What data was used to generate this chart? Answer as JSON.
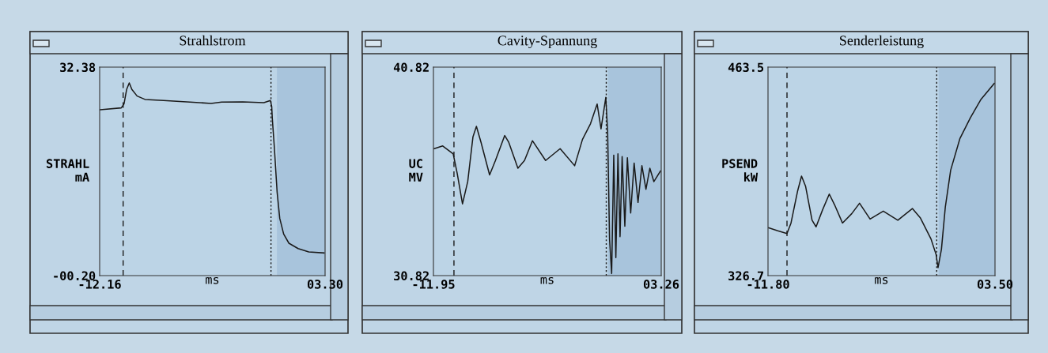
{
  "chart_data": [
    {
      "type": "line",
      "title": "Strahlstrom",
      "ylabel": "STRAHL\nmA",
      "xlabel": "ms",
      "xlim": [
        -12.16,
        3.3
      ],
      "ylim": [
        -0.2,
        32.38
      ],
      "xticks": [
        {
          "value": -12.16,
          "label": "-12.16"
        },
        {
          "value": 3.3,
          "label": "03.30"
        }
      ],
      "yticks": [
        {
          "value": -0.2,
          "label": "-00.20"
        },
        {
          "value": 32.38,
          "label": "32.38"
        }
      ],
      "grid": false,
      "legend": false,
      "series": [
        {
          "color": "#1a1a1a",
          "x": [
            -12.12,
            -10.68,
            -10.49,
            -10.31,
            -10.13,
            -9.95,
            -9.59,
            -9.05,
            -7.78,
            -5.97,
            -4.52,
            -3.8,
            -2.35,
            -0.9,
            -0.45,
            -0.36,
            -0.32,
            -0.18,
            0.01,
            0.19,
            0.46,
            0.82,
            1.45,
            2.18,
            3.23
          ],
          "values": [
            25.72,
            26.01,
            26.63,
            28.89,
            29.92,
            28.89,
            27.86,
            27.33,
            27.16,
            26.92,
            26.71,
            26.92,
            26.96,
            26.83,
            27.16,
            26.22,
            24.37,
            19.85,
            12.87,
            8.76,
            6.29,
            4.86,
            4.03,
            3.5,
            3.34
          ]
        }
      ],
      "ref_lines": [
        {
          "axis": "x",
          "value": -10.55,
          "color": "#1a1a1a",
          "line_style": "dashed"
        },
        {
          "axis": "x",
          "value": -0.41,
          "color": "#1a1a1a",
          "line_style": "dotted"
        }
      ],
      "bands": [
        {
          "axis": "x",
          "from": 0.0,
          "to": 3.3,
          "color": "#a8c4dc"
        }
      ]
    },
    {
      "type": "line",
      "title": "Cavity-Spannung",
      "ylabel": "UC\nMV",
      "xlabel": "ms",
      "xlim": [
        -11.95,
        3.26
      ],
      "ylim": [
        30.82,
        40.82
      ],
      "xticks": [
        {
          "value": -11.95,
          "label": "-11.95"
        },
        {
          "value": 3.26,
          "label": "03.26"
        }
      ],
      "yticks": [
        {
          "value": 30.82,
          "label": "30.82"
        },
        {
          "value": 40.82,
          "label": "40.82"
        }
      ],
      "grid": false,
      "legend": false,
      "series": [
        {
          "color": "#1a1a1a",
          "x": [
            -11.9,
            -11.33,
            -10.63,
            -10.36,
            -10.01,
            -9.66,
            -9.31,
            -9.08,
            -8.78,
            -8.2,
            -7.81,
            -7.19,
            -6.93,
            -6.31,
            -5.87,
            -5.34,
            -4.46,
            -3.49,
            -2.52,
            -2.0,
            -1.46,
            -1.02,
            -0.76,
            -0.44,
            -0.32,
            -0.19,
            -0.05,
            0.09,
            0.23,
            0.37,
            0.51,
            0.65,
            0.83,
            1.0,
            1.22,
            1.45,
            1.71,
            1.97,
            2.24,
            2.5,
            2.77,
            3.21
          ],
          "values": [
            36.91,
            37.04,
            36.66,
            35.71,
            34.26,
            35.33,
            37.48,
            37.98,
            37.23,
            35.65,
            36.34,
            37.54,
            37.23,
            35.97,
            36.34,
            37.29,
            36.34,
            36.91,
            36.09,
            37.35,
            38.11,
            39.05,
            37.86,
            39.37,
            37.73,
            32.56,
            30.92,
            36.6,
            31.68,
            36.66,
            32.69,
            36.53,
            33.19,
            36.47,
            33.82,
            36.22,
            34.33,
            36.09,
            34.96,
            35.97,
            35.33,
            35.84
          ]
        }
      ],
      "ref_lines": [
        {
          "axis": "x",
          "value": -10.58,
          "color": "#1a1a1a",
          "line_style": "dashed"
        },
        {
          "axis": "x",
          "value": -0.41,
          "color": "#1a1a1a",
          "line_style": "dotted"
        }
      ],
      "bands": [
        {
          "axis": "x",
          "from": -0.3,
          "to": 3.26,
          "color": "#a8c4dc"
        }
      ]
    },
    {
      "type": "line",
      "title": "Senderleistung",
      "ylabel": "PSEND\nkW",
      "xlabel": "ms",
      "xlim": [
        -11.8,
        3.5
      ],
      "ylim": [
        326.7,
        463.5
      ],
      "xticks": [
        {
          "value": -11.8,
          "label": "-11.80"
        },
        {
          "value": 3.5,
          "label": "03.50"
        }
      ],
      "yticks": [
        {
          "value": 326.7,
          "label": "326.7"
        },
        {
          "value": 463.5,
          "label": "463.5"
        }
      ],
      "grid": false,
      "legend": false,
      "series": [
        {
          "color": "#1a1a1a",
          "x": [
            -11.75,
            -11.14,
            -10.52,
            -10.25,
            -9.81,
            -9.54,
            -9.27,
            -8.83,
            -8.56,
            -8.12,
            -7.67,
            -7.32,
            -6.78,
            -6.16,
            -5.63,
            -4.92,
            -4.03,
            -3.05,
            -2.07,
            -1.54,
            -0.82,
            -0.47,
            -0.34,
            -0.11,
            0.15,
            0.51,
            1.13,
            1.84,
            2.56,
            3.45
          ],
          "values": [
            358.1,
            356.1,
            354.3,
            361.2,
            382.0,
            392.0,
            385.4,
            363.0,
            358.7,
            369.9,
            380.2,
            373.3,
            361.2,
            367.3,
            374.2,
            363.8,
            369.0,
            363.0,
            370.7,
            364.7,
            350.9,
            340.5,
            331.9,
            344.0,
            371.6,
            395.8,
            416.5,
            430.3,
            442.4,
            452.8
          ]
        }
      ],
      "ref_lines": [
        {
          "axis": "x",
          "value": -10.52,
          "color": "#1a1a1a",
          "line_style": "dashed"
        },
        {
          "axis": "x",
          "value": -0.43,
          "color": "#1a1a1a",
          "line_style": "dotted"
        }
      ],
      "bands": [
        {
          "axis": "x",
          "from": -0.3,
          "to": 3.5,
          "color": "#a8c4dc"
        }
      ]
    }
  ]
}
